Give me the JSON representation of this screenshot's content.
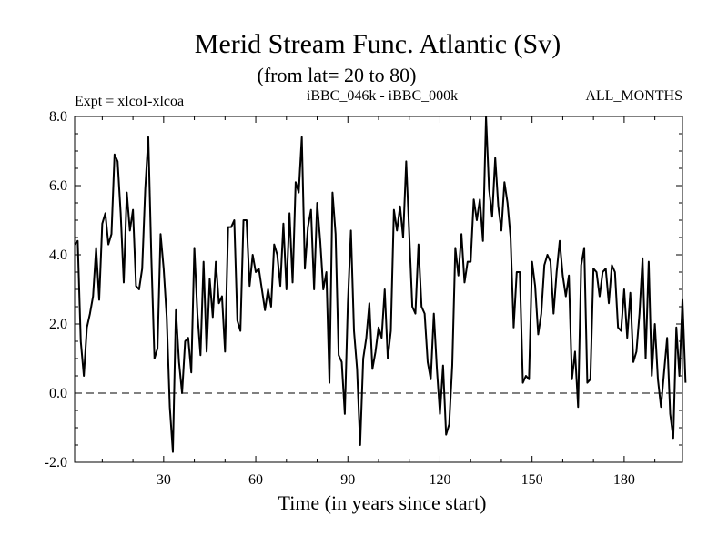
{
  "header": {
    "title": "Merid Stream Func. Atlantic (Sv)",
    "subtitle": "(from lat= 20 to 80)",
    "experiment": "Expt = xlcoI-xlcoa",
    "comparison": "iBBC_046k - iBBC_000k",
    "months": "ALL_MONTHS"
  },
  "chart_data": {
    "type": "line",
    "title": "Merid Stream Func. Atlantic (Sv)",
    "subtitle": "(from lat= 20 to 80)",
    "xlabel": "Time (in years since start)",
    "ylabel": "",
    "xlim": [
      1,
      199
    ],
    "ylim": [
      -2.0,
      8.0
    ],
    "x_ticks": [
      30,
      60,
      90,
      120,
      150,
      180
    ],
    "x_tick_labels": [
      "30",
      "60",
      "90",
      "120",
      "150",
      "180"
    ],
    "y_ticks": [
      -2,
      0,
      2,
      4,
      6,
      8
    ],
    "y_tick_labels": [
      "-2.0",
      "0.0",
      "2.0",
      "4.0",
      "6.0",
      "8.0"
    ],
    "grid": false,
    "reference_line": {
      "y": 0.0,
      "style": "dashed"
    },
    "series": [
      {
        "name": "iBBC_046k - iBBC_000k",
        "color": "#000000",
        "values": [
          4.3,
          4.4,
          1.5,
          0.5,
          1.9,
          2.3,
          2.8,
          4.2,
          2.7,
          4.9,
          5.2,
          4.3,
          4.6,
          6.9,
          6.7,
          5.2,
          3.2,
          5.8,
          4.7,
          5.3,
          3.1,
          3.0,
          3.6,
          5.9,
          7.4,
          3.9,
          1.0,
          1.3,
          4.6,
          3.6,
          2.2,
          -0.4,
          -1.7,
          2.4,
          0.9,
          0.0,
          1.5,
          1.6,
          0.6,
          4.2,
          2.3,
          1.1,
          3.8,
          1.2,
          3.3,
          2.2,
          3.8,
          2.6,
          2.8,
          1.2,
          4.8,
          4.8,
          5.0,
          2.1,
          1.8,
          5.0,
          5.0,
          3.1,
          4.0,
          3.5,
          3.6,
          3.0,
          2.4,
          3.0,
          2.5,
          4.3,
          4.0,
          3.1,
          4.9,
          3.0,
          5.2,
          3.2,
          6.1,
          5.8,
          7.4,
          3.6,
          4.8,
          5.3,
          3.0,
          5.5,
          4.4,
          3.0,
          3.5,
          0.3,
          5.8,
          4.6,
          1.1,
          0.9,
          -0.6,
          2.6,
          4.7,
          1.8,
          0.7,
          -1.5,
          1.0,
          1.6,
          2.6,
          0.7,
          1.2,
          1.9,
          1.6,
          3.0,
          1.0,
          1.8,
          5.3,
          4.7,
          5.4,
          4.5,
          6.7,
          4.6,
          2.5,
          2.3,
          4.3,
          2.5,
          2.3,
          0.9,
          0.4,
          2.3,
          0.7,
          -0.6,
          0.8,
          -1.2,
          -0.9,
          0.8,
          4.2,
          3.4,
          4.6,
          3.2,
          3.8,
          3.8,
          5.6,
          5.0,
          5.6,
          4.4,
          8.0,
          5.9,
          5.1,
          6.8,
          5.4,
          4.7,
          6.1,
          5.5,
          4.5,
          1.9,
          3.5,
          3.5,
          0.3,
          0.5,
          0.4,
          3.8,
          3.1,
          1.7,
          2.3,
          3.7,
          4.0,
          3.8,
          2.3,
          3.5,
          4.4,
          3.4,
          2.8,
          3.4,
          0.4,
          1.2,
          -0.4,
          3.7,
          4.2,
          0.3,
          0.4,
          3.6,
          3.5,
          2.8,
          3.5,
          3.6,
          2.6,
          3.7,
          3.5,
          1.9,
          1.8,
          3.0,
          1.6,
          2.9,
          0.9,
          1.2,
          2.3,
          3.9,
          1.0,
          3.8,
          0.5,
          2.0,
          0.4,
          -0.4,
          0.6,
          1.6,
          -0.6,
          -1.3,
          1.9,
          0.5,
          2.7,
          0.3
        ]
      }
    ]
  }
}
